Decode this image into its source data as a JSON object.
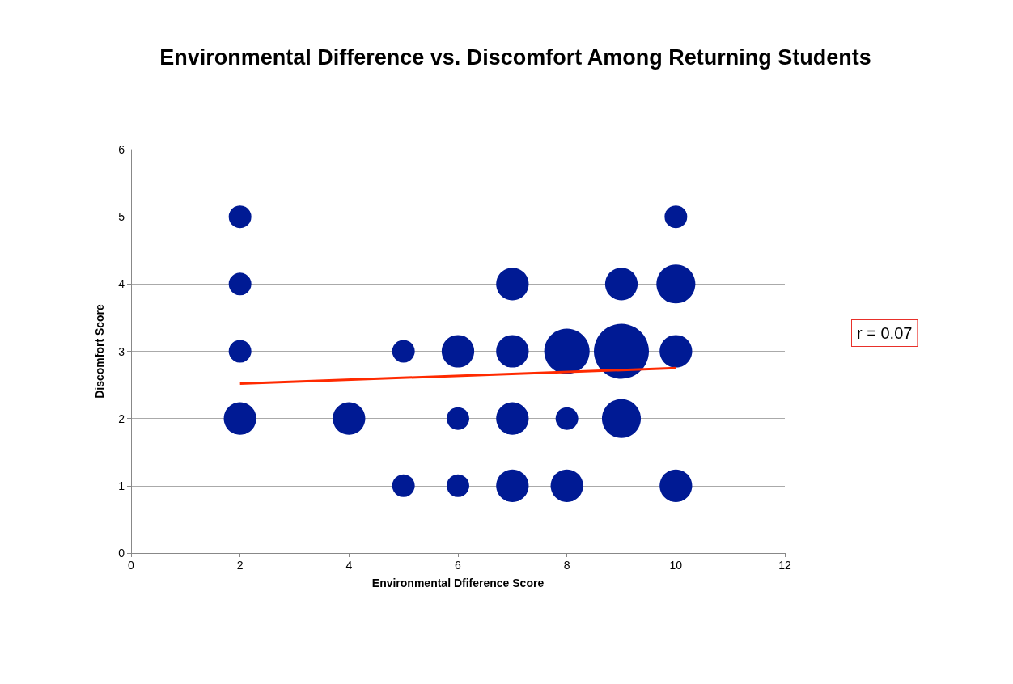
{
  "chart_data": {
    "type": "bubble",
    "title": "Environmental Difference vs. Discomfort Among Returning Students",
    "xlabel": "Environmental Dfiference Score",
    "ylabel": "Discomfort Score",
    "series": [
      {
        "marker": "circle",
        "color": "#001a94",
        "x": [
          2,
          10,
          2,
          7,
          9,
          10,
          2,
          5,
          6,
          7,
          8,
          9,
          10,
          2,
          4,
          6,
          7,
          8,
          9,
          5,
          6,
          7,
          8,
          10
        ],
        "values": [
          5,
          5,
          4,
          4,
          4,
          4,
          3,
          3,
          3,
          3,
          3,
          3,
          3,
          2,
          2,
          2,
          2,
          2,
          2,
          1,
          1,
          1,
          1,
          1
        ],
        "sizes": [
          0.17,
          0.17,
          0.17,
          0.35,
          0.35,
          0.5,
          0.17,
          0.17,
          0.35,
          0.35,
          0.68,
          1,
          0.35,
          0.35,
          0.35,
          0.17,
          0.35,
          0.17,
          0.5,
          0.17,
          0.17,
          0.35,
          0.35,
          0.35
        ]
      },
      {
        "type": "line",
        "marker": "none",
        "color": "#ff2a00",
        "x": [
          2,
          10
        ],
        "values": [
          2.52,
          2.75
        ]
      }
    ],
    "xlim": [
      0,
      12
    ],
    "xticks": [
      0,
      2,
      4,
      6,
      8,
      10,
      12
    ],
    "ylim": [
      0,
      6
    ],
    "yticks": [
      0,
      1,
      2,
      3,
      4,
      5,
      6
    ],
    "grid": "y",
    "annotations": [
      "r = 0.07"
    ]
  }
}
